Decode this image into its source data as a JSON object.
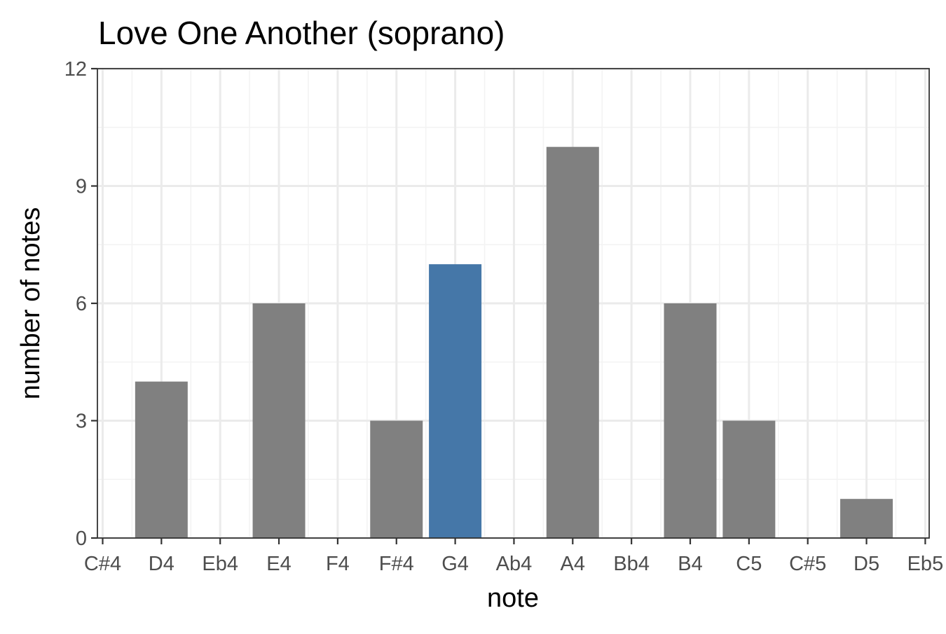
{
  "chart_data": {
    "type": "bar",
    "title": "Love One Another (soprano)",
    "xlabel": "note",
    "ylabel": "number of notes",
    "categories": [
      "C#4",
      "D4",
      "Eb4",
      "E4",
      "F4",
      "F#4",
      "G4",
      "Ab4",
      "A4",
      "Bb4",
      "B4",
      "C5",
      "C#5",
      "D5",
      "Eb5"
    ],
    "values": [
      0,
      4,
      0,
      6,
      0,
      3,
      7,
      0,
      10,
      0,
      6,
      3,
      0,
      1,
      0
    ],
    "highlight_category": "G4",
    "ylim": [
      0,
      12
    ],
    "yticks": [
      0,
      3,
      6,
      9,
      12
    ],
    "grid": true,
    "colors": {
      "bar": "#808080",
      "highlight": "#4577a8"
    }
  }
}
